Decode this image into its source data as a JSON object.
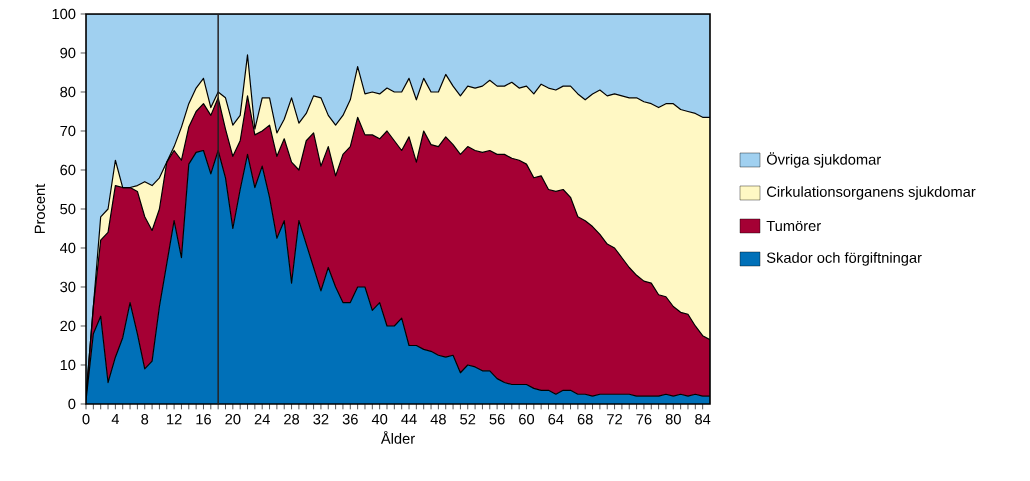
{
  "chart_data": {
    "type": "area",
    "stacked": true,
    "xlabel": "Ålder",
    "ylabel": "Procent",
    "x": [
      0,
      1,
      2,
      3,
      4,
      5,
      6,
      7,
      8,
      9,
      10,
      11,
      12,
      13,
      14,
      15,
      16,
      17,
      18,
      19,
      20,
      21,
      22,
      23,
      24,
      25,
      26,
      27,
      28,
      29,
      30,
      31,
      32,
      33,
      34,
      35,
      36,
      37,
      38,
      39,
      40,
      41,
      42,
      43,
      44,
      45,
      46,
      47,
      48,
      49,
      50,
      51,
      52,
      53,
      54,
      55,
      56,
      57,
      58,
      59,
      60,
      61,
      62,
      63,
      64,
      65,
      66,
      67,
      68,
      69,
      70,
      71,
      72,
      73,
      74,
      75,
      76,
      77,
      78,
      79,
      80,
      81,
      82,
      83,
      84,
      85
    ],
    "xlim": [
      0,
      85
    ],
    "xticks": [
      0,
      4,
      8,
      12,
      16,
      20,
      24,
      28,
      32,
      36,
      40,
      44,
      48,
      52,
      56,
      60,
      64,
      68,
      72,
      76,
      80,
      84
    ],
    "ylim": [
      0,
      100
    ],
    "yticks": [
      0,
      10,
      20,
      30,
      40,
      50,
      60,
      70,
      80,
      90,
      100
    ],
    "legend": "right",
    "line_style": "solid",
    "ref_lines": [
      {
        "axis": "x",
        "value": 18,
        "color": "#231f20"
      }
    ],
    "series": [
      {
        "name": "Skador och förgiftningar",
        "color": "#0070b8",
        "values": [
          1,
          18,
          22.5,
          5.5,
          12,
          17,
          26,
          18,
          9,
          11,
          25,
          36,
          47,
          37.5,
          61.5,
          64.5,
          65,
          59,
          65,
          58,
          45,
          55,
          64,
          55.5,
          61,
          53,
          42.5,
          47,
          31,
          47,
          41,
          35,
          29,
          35,
          30,
          26,
          26,
          30,
          30,
          24,
          26,
          20,
          20,
          22,
          15,
          15,
          14,
          13.5,
          12.5,
          12,
          12.5,
          8,
          10,
          9.5,
          8.5,
          8.5,
          6.5,
          5.5,
          5,
          5,
          5,
          4,
          3.5,
          3.5,
          2.5,
          3.5,
          3.5,
          2.5,
          2.5,
          2,
          2.5,
          2.5,
          2.5,
          2.5,
          2.5,
          2,
          2,
          2,
          2,
          2.5,
          2,
          2.5,
          2,
          2.5,
          2,
          2
        ]
      },
      {
        "name": "Tumörer",
        "color": "#a50034",
        "values": [
          1,
          7,
          19.5,
          38.5,
          44,
          38.5,
          29.5,
          36.5,
          39,
          33.5,
          25,
          26,
          18,
          25,
          9.5,
          10.5,
          12,
          15,
          13.5,
          12.5,
          18.5,
          12.5,
          15,
          13.5,
          9,
          18.5,
          21,
          21,
          31,
          13,
          26.5,
          34.5,
          32,
          31,
          28.5,
          38,
          40,
          43.5,
          39,
          45,
          42,
          50,
          47.5,
          43,
          53.5,
          47,
          56,
          53,
          53.5,
          56.5,
          54,
          56,
          56,
          55.5,
          56,
          56.5,
          57.5,
          58.5,
          58,
          57.5,
          56.5,
          54,
          55,
          51.5,
          52,
          51.5,
          49.5,
          45.5,
          44.5,
          43.5,
          41,
          38.5,
          37.5,
          35,
          32.5,
          31,
          29.5,
          29,
          26,
          25,
          23,
          21,
          21,
          17.5,
          15.5,
          14.5
        ]
      },
      {
        "name": "Cirkulationsorganens sjukdomar",
        "color": "#fff8c4",
        "values": [
          0,
          0,
          6,
          6,
          6.5,
          0,
          0,
          1.5,
          9,
          11.5,
          8,
          0,
          1,
          8.5,
          6,
          6,
          6.5,
          2,
          1.5,
          8,
          8,
          6.5,
          10.5,
          1.5,
          8.5,
          7,
          6,
          5,
          16.5,
          12,
          7,
          9.5,
          17.5,
          8,
          13,
          10,
          12,
          13,
          10.5,
          11,
          11.5,
          11,
          12.5,
          15,
          15,
          16,
          13.5,
          13.5,
          14,
          16,
          15,
          15,
          15.5,
          16,
          17,
          18,
          17.5,
          17.5,
          19.5,
          18.5,
          20,
          21.5,
          23.5,
          26,
          26,
          26.5,
          28.5,
          31.5,
          31,
          34,
          37,
          38,
          39.5,
          41.5,
          43.5,
          45.5,
          46,
          46,
          48,
          49.5,
          52,
          52,
          52,
          54.5,
          56,
          57
        ]
      },
      {
        "name": "Övriga sjukdomar",
        "color": "#a0d0f0",
        "values": [
          98,
          75,
          52,
          50,
          37.5,
          44.5,
          44.5,
          44,
          43,
          44,
          42,
          38,
          34,
          29,
          23,
          19,
          16.5,
          24,
          20,
          21.5,
          28.5,
          26,
          10.5,
          29.5,
          21.5,
          21.5,
          30.5,
          27,
          21.5,
          28,
          25.5,
          21,
          21.5,
          26,
          28.5,
          26,
          22,
          13.5,
          20.5,
          20,
          20.5,
          19,
          20,
          20,
          16.5,
          22,
          16.5,
          20,
          20,
          15.5,
          18.5,
          21,
          18.5,
          19,
          18.5,
          17,
          18.5,
          18.5,
          17.5,
          19,
          18.5,
          20.5,
          18,
          19,
          19.5,
          18.5,
          18.5,
          20.5,
          22,
          20.5,
          19.5,
          21,
          20.5,
          21,
          21.5,
          21.5,
          22.5,
          23,
          24,
          23,
          23,
          24.5,
          25,
          25.5,
          26.5,
          26.5
        ]
      }
    ]
  }
}
